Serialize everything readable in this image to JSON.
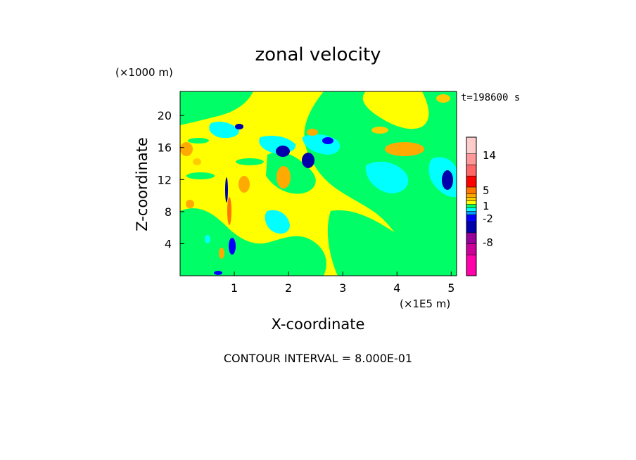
{
  "chart_data": {
    "type": "heatmap",
    "title": "zonal velocity",
    "xlabel": "X-coordinate",
    "ylabel": "Z-coordinate",
    "x_unit": "(×1E5 m)",
    "y_unit": "(×1000 m)",
    "time_label": "t=198600 s",
    "footer": "CONTOUR INTERVAL = 8.000E-01",
    "xlim": [
      0,
      5.1
    ],
    "ylim": [
      0,
      23
    ],
    "x_ticks": [
      "1",
      "2",
      "3",
      "4",
      "5"
    ],
    "y_ticks": [
      "4",
      "8",
      "12",
      "16",
      "20"
    ],
    "colorbar": {
      "tick_labels": [
        "14",
        "5",
        "1",
        "-2",
        "-8"
      ],
      "colors": [
        "#ff00aa",
        "#cc0099",
        "#990099",
        "#0000aa",
        "#0000ff",
        "#0099ff",
        "#00ffff",
        "#00ff66",
        "#ffff00",
        "#ffcc00",
        "#ffaa00",
        "#ff7700",
        "#ff0000",
        "#ff6666",
        "#ff9999",
        "#ffcccc"
      ],
      "background_color": "#ffff00"
    }
  }
}
